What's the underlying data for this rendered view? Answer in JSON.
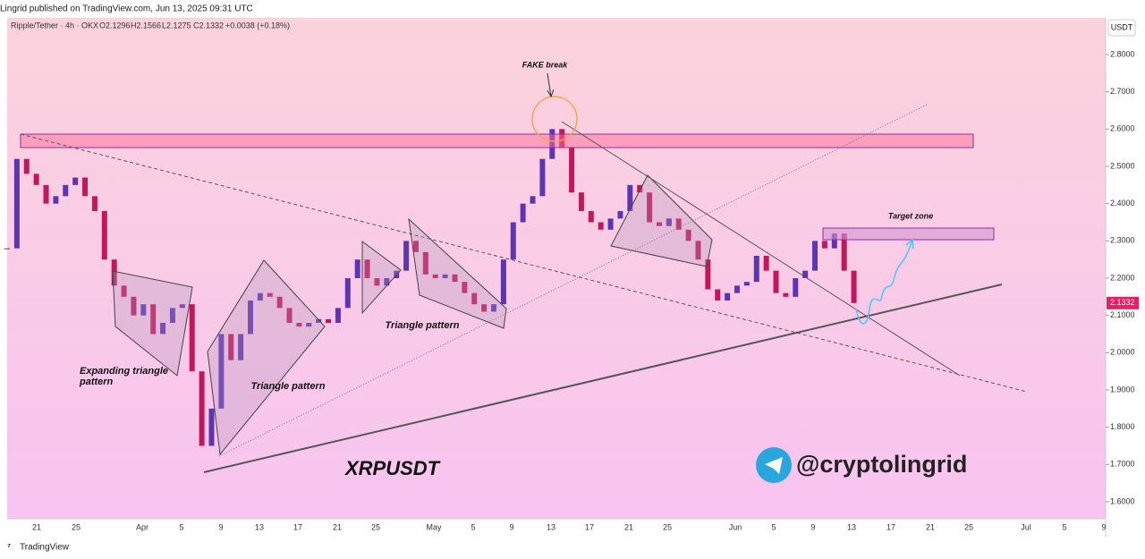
{
  "header": {
    "publisher": "Lingrid published on TradingView.com, Jun 13, 2025 09:31 UTC"
  },
  "symbol_bar": {
    "symbol": "Ripple/Tether · 4h · OKX",
    "open": "O2.1296",
    "high": "H2.1566",
    "low": "L2.1275",
    "close": "C2.1332",
    "change": "+0.0038 (+0.18%)"
  },
  "chart_data": {
    "type": "candlestick",
    "currency": "USDT",
    "values": [
      2.28,
      2.52,
      2.48,
      2.45,
      2.4,
      2.42,
      2.45,
      2.47,
      2.42,
      2.38,
      2.25,
      2.18,
      2.15,
      2.1,
      2.13,
      2.05,
      2.08,
      2.12,
      2.13,
      1.95,
      1.75,
      1.85,
      2.05,
      1.98,
      2.05,
      2.14,
      2.16,
      2.15,
      2.12,
      2.08,
      2.07,
      2.08,
      2.09,
      2.08,
      2.12,
      2.2,
      2.25,
      2.2,
      2.18,
      2.2,
      2.22,
      2.3,
      2.27,
      2.21,
      2.2,
      2.21,
      2.19,
      2.16,
      2.13,
      2.11,
      2.13,
      2.25,
      2.35,
      2.4,
      2.42,
      2.52,
      2.6,
      2.55,
      2.43,
      2.38,
      2.35,
      2.33,
      2.36,
      2.38,
      2.45,
      2.43,
      2.35,
      2.34,
      2.36,
      2.33,
      2.3,
      2.25,
      2.17,
      2.14,
      2.16,
      2.18,
      2.19,
      2.26,
      2.22,
      2.16,
      2.15,
      2.2,
      2.22,
      2.3,
      2.28,
      2.32,
      2.22,
      2.1332
    ],
    "up_color": "#5e35b1",
    "down_color": "#c2185b",
    "ylim": [
      1.5544,
      2.8984
    ],
    "yticks": [
      {
        "value": 2.8,
        "label": "2.8000"
      },
      {
        "value": 2.7,
        "label": "2.7000"
      },
      {
        "value": 2.6,
        "label": "2.6000"
      },
      {
        "value": 2.5,
        "label": "2.5000"
      },
      {
        "value": 2.4,
        "label": "2.4000"
      },
      {
        "value": 2.3,
        "label": "2.3000"
      },
      {
        "value": 2.2,
        "label": "2.2000"
      },
      {
        "value": 2.1,
        "label": "2.1000"
      },
      {
        "value": 2.0,
        "label": "2.0000"
      },
      {
        "value": 1.9,
        "label": "1.9000"
      },
      {
        "value": 1.8,
        "label": "1.8000"
      },
      {
        "value": 1.7,
        "label": "1.7000"
      },
      {
        "value": 1.6,
        "label": "1.6000"
      }
    ],
    "price_tag": {
      "value": 2.1332,
      "label": "2.1332"
    },
    "x_labels": [
      "21",
      "25",
      "Apr",
      "5",
      "9",
      "13",
      "17",
      "21",
      "25",
      "May",
      "5",
      "9",
      "13",
      "17",
      "21",
      "25",
      "Jun",
      "5",
      "9",
      "13",
      "17",
      "21",
      "25",
      "Jul",
      "5",
      "9"
    ]
  },
  "annotations": {
    "fake_break": "FAKE break",
    "target_zone": "Target zone",
    "triangle_1": "Triangle pattern",
    "triangle_2": "Triangle pattern",
    "expanding": "Expanding triangle pattern",
    "ticker": "XRPUSDT",
    "handle": "@cryptolingrid"
  },
  "footer": {
    "brand": "TradingView"
  }
}
